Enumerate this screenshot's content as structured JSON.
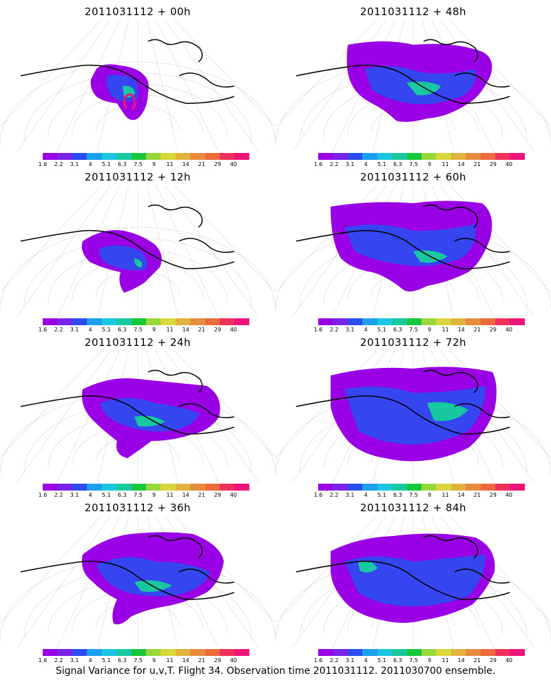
{
  "panels": [
    {
      "title": "2011031112 + 00h"
    },
    {
      "title": "2011031112 + 48h"
    },
    {
      "title": "2011031112 + 12h"
    },
    {
      "title": "2011031112 + 60h"
    },
    {
      "title": "2011031112 + 24h"
    },
    {
      "title": "2011031112 + 72h"
    },
    {
      "title": "2011031112 + 36h"
    },
    {
      "title": "2011031112 + 84h"
    }
  ],
  "colorbar": {
    "colors": [
      "#9a00e6",
      "#7a22e8",
      "#2a4cf0",
      "#1d9ff0",
      "#19c8e0",
      "#18c8a0",
      "#18c83c",
      "#96d83c",
      "#d8d83c",
      "#e0b43c",
      "#e68c3c",
      "#ec6a3c",
      "#f0325a",
      "#f0147a"
    ],
    "ticks": [
      "1.6",
      "2.2",
      "3.1",
      "4",
      "5.1",
      "6.3",
      "7.5",
      "9",
      "11",
      "14",
      "21",
      "29",
      "40"
    ]
  },
  "caption": "Signal Variance for u,v,T. Flight 34. Observation time 2011031112. 2011030700 ensemble."
}
